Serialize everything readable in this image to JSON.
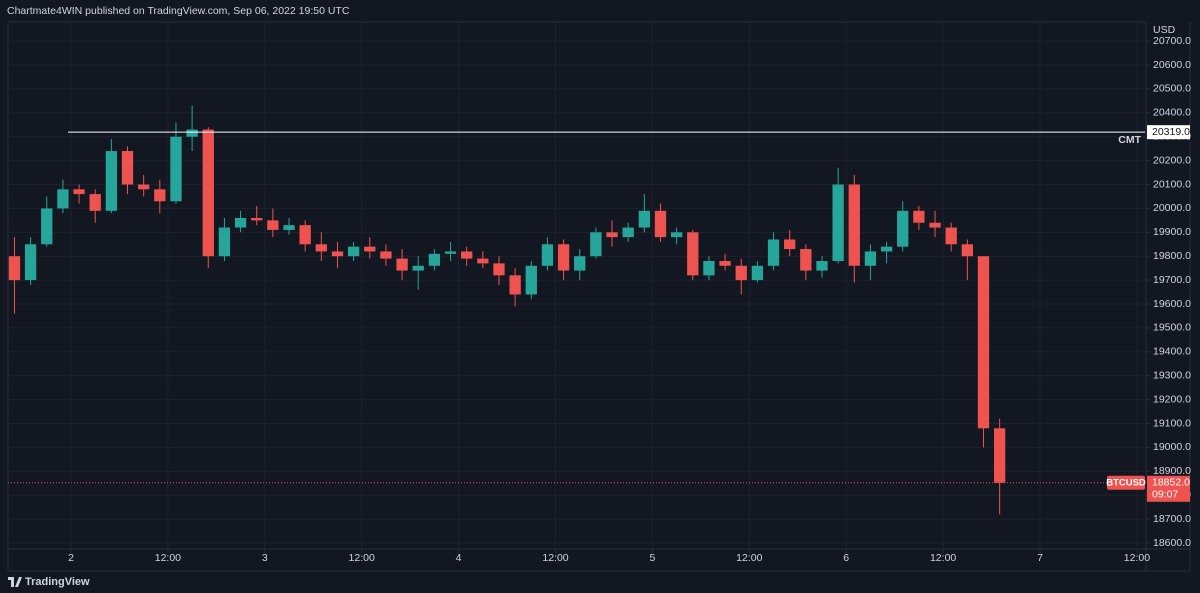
{
  "header": "Chartmate4WIN published on TradingView.com, Sep 06, 2022 19:50 UTC",
  "footer": "TradingView",
  "chart_data": {
    "type": "candlestick",
    "currency": "USD",
    "symbol": "BTCUSD",
    "up_color": "#26a69a",
    "down_color": "#ef5350",
    "grid": true,
    "x": [
      17,
      19,
      21,
      23,
      25,
      27,
      29,
      31,
      33,
      35,
      37,
      39,
      41,
      43,
      45,
      47,
      49,
      51,
      53,
      55,
      57,
      59,
      61,
      63,
      65,
      67,
      69,
      71,
      73,
      75,
      77,
      79,
      81,
      83,
      85,
      87,
      89,
      91,
      93,
      95,
      97,
      99,
      101,
      103,
      105,
      107,
      109,
      111,
      113,
      115,
      117,
      119,
      121,
      123,
      125,
      127,
      129,
      131,
      133,
      135,
      137,
      139
    ],
    "open": [
      19800,
      19700,
      19850,
      20000,
      20080,
      20060,
      19990,
      20240,
      20100,
      20080,
      20030,
      20300,
      20330,
      19800,
      19920,
      19960,
      19950,
      19910,
      19930,
      19850,
      19820,
      19800,
      19840,
      19820,
      19790,
      19740,
      19760,
      19810,
      19820,
      19790,
      19770,
      19720,
      19640,
      19760,
      19850,
      19740,
      19800,
      19900,
      19880,
      19920,
      19990,
      19880,
      19900,
      19720,
      19780,
      19760,
      19700,
      19760,
      19870,
      19830,
      19740,
      19780,
      20100,
      19760,
      19820,
      19840,
      19990,
      19940,
      19920,
      19850,
      19800,
      19080
    ],
    "high": [
      19880,
      19880,
      20050,
      20120,
      20100,
      20080,
      20290,
      20260,
      20140,
      20120,
      20360,
      20430,
      20340,
      19960,
      19990,
      20010,
      20000,
      19960,
      19950,
      19900,
      19860,
      19860,
      19880,
      19850,
      19830,
      19800,
      19830,
      19860,
      19840,
      19820,
      19800,
      19750,
      19780,
      19880,
      19870,
      19830,
      19920,
      19950,
      19940,
      20060,
      20020,
      19920,
      19910,
      19800,
      19810,
      19790,
      19780,
      19900,
      19910,
      19850,
      19800,
      20170,
      20140,
      19850,
      19860,
      20030,
      20010,
      19990,
      19940,
      19870,
      19800,
      19120
    ],
    "low": [
      19560,
      19680,
      19840,
      19980,
      20020,
      19940,
      19980,
      20060,
      20050,
      19980,
      20020,
      20240,
      19750,
      19780,
      19900,
      19930,
      19880,
      19890,
      19820,
      19780,
      19750,
      19780,
      19790,
      19760,
      19700,
      19660,
      19740,
      19780,
      19760,
      19750,
      19680,
      19590,
      19620,
      19740,
      19700,
      19700,
      19790,
      19840,
      19860,
      19900,
      19860,
      19850,
      19700,
      19700,
      19740,
      19640,
      19690,
      19740,
      19800,
      19700,
      19710,
      19770,
      19690,
      19700,
      19770,
      19820,
      19910,
      19880,
      19820,
      19700,
      19000,
      18720
    ],
    "close": [
      19700,
      19850,
      20000,
      20080,
      20060,
      19990,
      20240,
      20100,
      20080,
      20030,
      20300,
      20330,
      19800,
      19920,
      19960,
      19950,
      19910,
      19930,
      19850,
      19820,
      19800,
      19840,
      19820,
      19790,
      19740,
      19760,
      19810,
      19820,
      19790,
      19770,
      19720,
      19640,
      19760,
      19850,
      19740,
      19800,
      19900,
      19880,
      19920,
      19990,
      19880,
      19900,
      19720,
      19780,
      19760,
      19700,
      19760,
      19870,
      19830,
      19740,
      19780,
      20100,
      19760,
      19820,
      19840,
      19990,
      19940,
      19920,
      19850,
      19800,
      19080,
      18852
    ],
    "last_price": {
      "value": 18852,
      "label": "18852.0"
    },
    "countdown": "09:07",
    "hline": {
      "value": 20319,
      "label": "20319.0",
      "name": "CMT"
    },
    "xlim": [
      16.2,
      157
    ],
    "xticks": [
      {
        "value": 24,
        "label": "2"
      },
      {
        "value": 36,
        "label": "12:00"
      },
      {
        "value": 48,
        "label": "3"
      },
      {
        "value": 60,
        "label": "12:00"
      },
      {
        "value": 72,
        "label": "4"
      },
      {
        "value": 84,
        "label": "12:00"
      },
      {
        "value": 96,
        "label": "5"
      },
      {
        "value": 108,
        "label": "12:00"
      },
      {
        "value": 120,
        "label": "6"
      },
      {
        "value": 132,
        "label": "12:00"
      },
      {
        "value": 144,
        "label": "7"
      },
      {
        "value": 156,
        "label": "12:00"
      }
    ],
    "ylim": [
      18575,
      20780
    ],
    "yticks": [
      {
        "value": 18600,
        "label": "18600.0"
      },
      {
        "value": 18700,
        "label": "18700.0"
      },
      {
        "value": 18800,
        "label": "18800.0"
      },
      {
        "value": 18900,
        "label": "18900.0"
      },
      {
        "value": 19000,
        "label": "19000.0"
      },
      {
        "value": 19100,
        "label": "19100.0"
      },
      {
        "value": 19200,
        "label": "19200.0"
      },
      {
        "value": 19300,
        "label": "19300.0"
      },
      {
        "value": 19400,
        "label": "19400.0"
      },
      {
        "value": 19500,
        "label": "19500.0"
      },
      {
        "value": 19600,
        "label": "19600.0"
      },
      {
        "value": 19700,
        "label": "19700.0"
      },
      {
        "value": 19800,
        "label": "19800.0"
      },
      {
        "value": 19900,
        "label": "19900.0"
      },
      {
        "value": 20000,
        "label": "20000.0"
      },
      {
        "value": 20100,
        "label": "20100.0"
      },
      {
        "value": 20200,
        "label": "20200.0"
      },
      {
        "value": 20300,
        "label": "20300.0"
      },
      {
        "value": 20400,
        "label": "20400.0"
      },
      {
        "value": 20500,
        "label": "20500.0"
      },
      {
        "value": 20600,
        "label": "20600.0"
      },
      {
        "value": 20700,
        "label": "20700.0"
      }
    ]
  }
}
